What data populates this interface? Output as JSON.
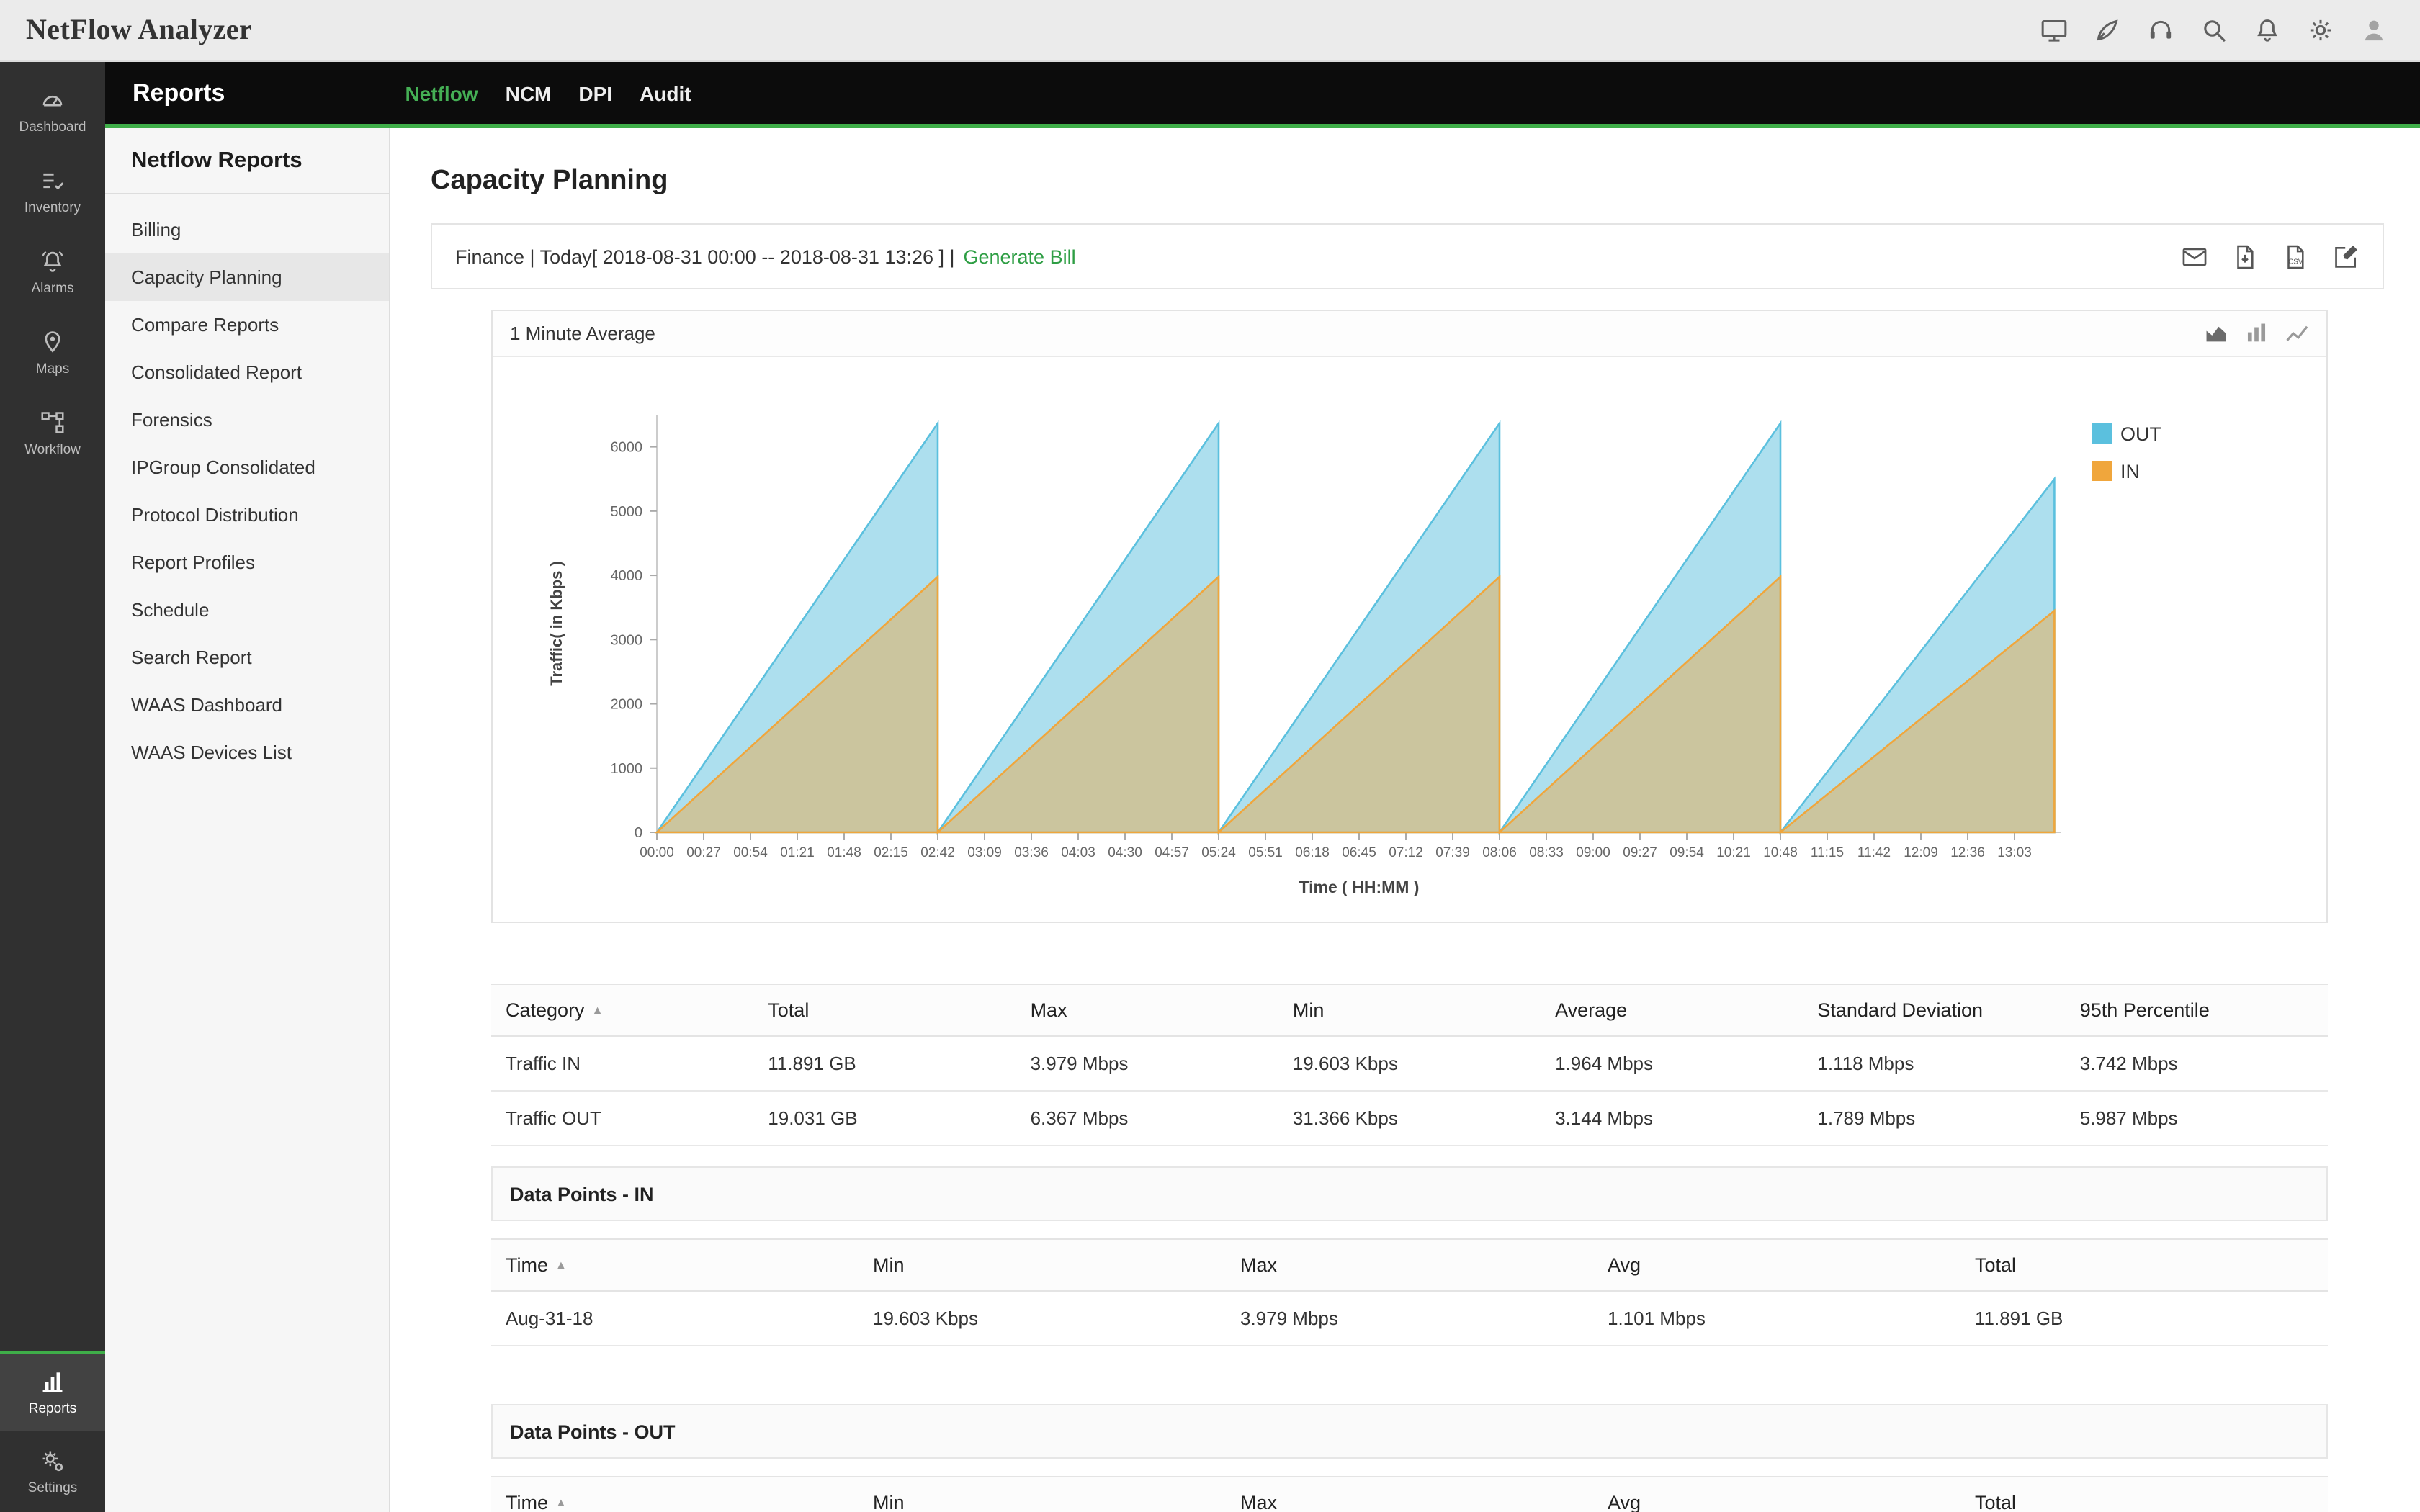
{
  "topbar": {
    "title": "NetFlow Analyzer",
    "icons": [
      {
        "name": "cast-screen-icon"
      },
      {
        "name": "getting-started-icon"
      },
      {
        "name": "support-icon"
      },
      {
        "name": "search-icon"
      },
      {
        "name": "notifications-icon"
      },
      {
        "name": "settings-gear-icon"
      },
      {
        "name": "user-profile-icon"
      }
    ]
  },
  "sidebar": {
    "items": [
      {
        "label": "Dashboard",
        "icon": "dashboard"
      },
      {
        "label": "Inventory",
        "icon": "inventory"
      },
      {
        "label": "Alarms",
        "icon": "alarms"
      },
      {
        "label": "Maps",
        "icon": "maps"
      },
      {
        "label": "Workflow",
        "icon": "workflow"
      }
    ],
    "bottom_items": [
      {
        "label": "Reports",
        "icon": "reports",
        "active": true
      },
      {
        "label": "Settings",
        "icon": "settings",
        "active": false
      }
    ]
  },
  "header": {
    "title": "Reports",
    "tabs": [
      {
        "label": "Netflow",
        "active": true
      },
      {
        "label": "NCM",
        "active": false
      },
      {
        "label": "DPI",
        "active": false
      },
      {
        "label": "Audit",
        "active": false
      }
    ]
  },
  "reports_nav": {
    "title": "Netflow Reports",
    "active_item": "Capacity Planning",
    "items": [
      "Billing",
      "Capacity Planning",
      "Compare Reports",
      "Consolidated Report",
      "Forensics",
      "IPGroup Consolidated",
      "Protocol Distribution",
      "Report Profiles",
      "Schedule",
      "Search Report",
      "WAAS Dashboard",
      "WAAS Devices List"
    ]
  },
  "page": {
    "title": "Capacity Planning",
    "filter_text": "Finance | Today[ 2018-08-31 00:00 -- 2018-08-31 13:26 ] |",
    "generate_bill_label": "Generate Bill",
    "toolbar_icons": [
      {
        "name": "email-icon"
      },
      {
        "name": "pdf-export-icon"
      },
      {
        "name": "csv-export-icon",
        "label": "CSV"
      },
      {
        "name": "edit-icon"
      }
    ]
  },
  "chart_panel": {
    "title": "1 Minute Average",
    "view_icons": [
      {
        "name": "area-chart-icon",
        "selected": true
      },
      {
        "name": "column-chart-icon",
        "selected": false
      },
      {
        "name": "line-chart-icon",
        "selected": false
      }
    ]
  },
  "chart_data": {
    "type": "area",
    "title": "1 Minute Average",
    "xlabel": "Time ( HH:MM )",
    "ylabel": "Traffic( in Kbps )",
    "ylim": [
      0,
      6500
    ],
    "y_ticks": [
      0,
      1000,
      2000,
      3000,
      4000,
      5000,
      6000
    ],
    "x_ticks": [
      "00:00",
      "00:27",
      "00:54",
      "01:21",
      "01:48",
      "02:15",
      "02:42",
      "03:09",
      "03:36",
      "04:03",
      "04:30",
      "04:57",
      "05:24",
      "05:51",
      "06:18",
      "06:45",
      "07:12",
      "07:39",
      "08:06",
      "08:33",
      "09:00",
      "09:27",
      "09:54",
      "10:21",
      "10:48",
      "11:15",
      "11:42",
      "12:09",
      "12:36",
      "13:03"
    ],
    "x_tick_interval_min": 27,
    "x_max_min": 810,
    "grid": false,
    "legend_position": "top-right",
    "series": [
      {
        "name": "OUT",
        "color": "#5bc0de",
        "fill": "rgba(91,192,222,0.5)",
        "points_min_kbps": [
          [
            0,
            0
          ],
          [
            162,
            6367
          ],
          [
            162,
            0
          ],
          [
            324,
            6367
          ],
          [
            324,
            0
          ],
          [
            486,
            6367
          ],
          [
            486,
            0
          ],
          [
            648,
            6367
          ],
          [
            648,
            0
          ],
          [
            806,
            5500
          ],
          [
            806,
            0
          ]
        ]
      },
      {
        "name": "IN",
        "color": "#f0a63c",
        "fill": "rgba(240,166,60,0.45)",
        "points_min_kbps": [
          [
            0,
            0
          ],
          [
            162,
            3979
          ],
          [
            162,
            0
          ],
          [
            324,
            3979
          ],
          [
            324,
            0
          ],
          [
            486,
            3979
          ],
          [
            486,
            0
          ],
          [
            648,
            3979
          ],
          [
            648,
            0
          ],
          [
            806,
            3450
          ],
          [
            806,
            0
          ]
        ]
      }
    ]
  },
  "summary_table": {
    "columns": [
      "Category",
      "Total",
      "Max",
      "Min",
      "Average",
      "Standard Deviation",
      "95th Percentile"
    ],
    "sorted_column": "Category",
    "rows": [
      [
        "Traffic IN",
        "11.891 GB",
        "3.979 Mbps",
        "19.603 Kbps",
        "1.964 Mbps",
        "1.118 Mbps",
        "3.742 Mbps"
      ],
      [
        "Traffic OUT",
        "19.031 GB",
        "6.367 Mbps",
        "31.366 Kbps",
        "3.144 Mbps",
        "1.789 Mbps",
        "5.987 Mbps"
      ]
    ]
  },
  "datapoints_in": {
    "title": "Data Points - IN",
    "columns": [
      "Time",
      "Min",
      "Max",
      "Avg",
      "Total"
    ],
    "sorted_column": "Time",
    "rows": [
      [
        "Aug-31-18",
        "19.603 Kbps",
        "3.979 Mbps",
        "1.101 Mbps",
        "11.891 GB"
      ]
    ]
  },
  "datapoints_out": {
    "title": "Data Points - OUT",
    "columns": [
      "Time",
      "Min",
      "Max",
      "Avg",
      "Total"
    ],
    "sorted_column": "Time",
    "rows": []
  },
  "colors": {
    "accent_green": "#3fae49",
    "link_green": "#2e9e44",
    "legend_out": "#5bc0de",
    "legend_in": "#f0a63c"
  }
}
